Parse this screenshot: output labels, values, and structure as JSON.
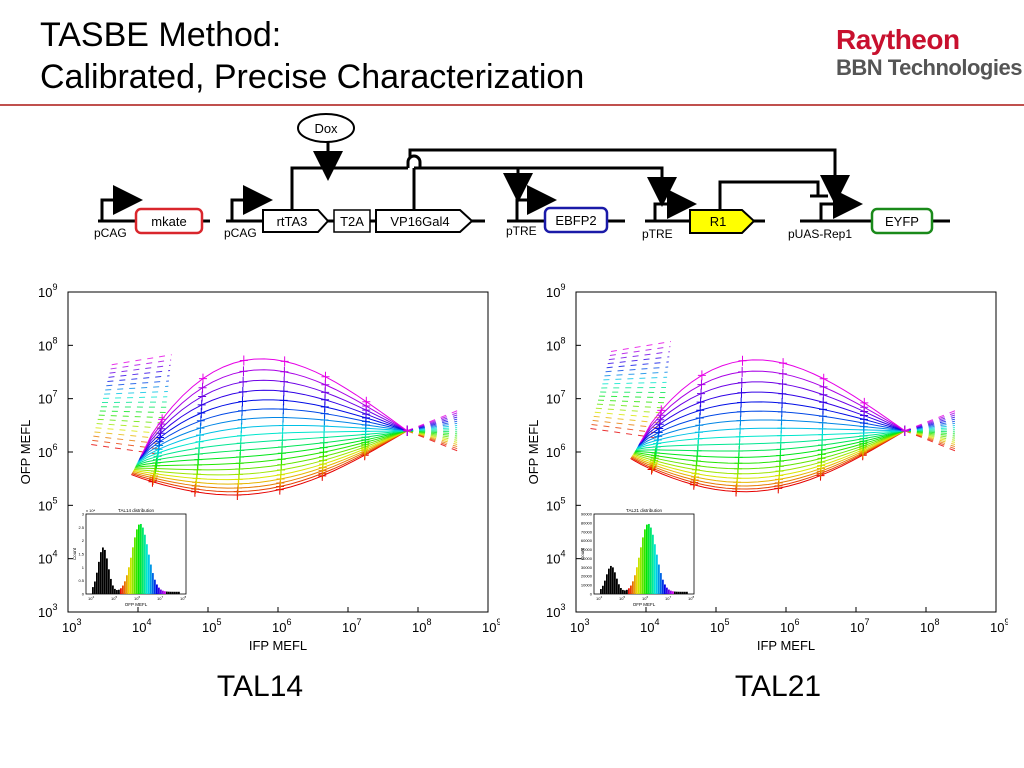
{
  "header": {
    "title_line1": "TASBE Method:",
    "title_line2": "Calibrated, Precise Characterization"
  },
  "logo": {
    "brand": "Raytheon",
    "sub": "BBN Technologies",
    "brand_color": "#c8102e"
  },
  "accent_rule_color": "#c0504d",
  "circuit": {
    "inducer": "Dox",
    "promoters": [
      "pCAG",
      "pCAG",
      "pTRE",
      "pTRE",
      "pUAS-Rep1"
    ],
    "genes": [
      {
        "label": "mkate",
        "border": "#d9262c",
        "fill": "#ffffff"
      },
      {
        "label": "rtTA3",
        "border": "#000000",
        "fill": "#ffffff"
      },
      {
        "label": "T2A",
        "border": "#000000",
        "fill": "#ffffff"
      },
      {
        "label": "VP16Gal4",
        "border": "#000000",
        "fill": "#ffffff"
      },
      {
        "label": "EBFP2",
        "border": "#1a1aa8",
        "fill": "#ffffff"
      },
      {
        "label": "R1",
        "border": "#000000",
        "fill": "#ffff00"
      },
      {
        "label": "EYFP",
        "border": "#1a8a1a",
        "fill": "#ffffff"
      }
    ]
  },
  "chart_data": [
    {
      "type": "line",
      "caption": "TAL14",
      "xlabel": "IFP MEFL",
      "ylabel": "OFP MEFL",
      "xscale": "log",
      "yscale": "log",
      "xlim": [
        1000,
        1000000000
      ],
      "ylim": [
        1000,
        1000000000
      ],
      "xticks": [
        "10",
        "10",
        "10",
        "10",
        "10",
        "10",
        "10"
      ],
      "xtick_exps": [
        "3",
        "4",
        "5",
        "6",
        "7",
        "8",
        "9"
      ],
      "ytick_exps": [
        "3",
        "4",
        "5",
        "6",
        "7",
        "8",
        "9"
      ],
      "grid": false,
      "series_count": 20,
      "series_shape": {
        "start_xy": [
          8000,
          300000
        ],
        "end_xy": [
          70000000,
          2500000
        ],
        "top_y": 90000000,
        "bottom_y": 300000
      },
      "inset": {
        "type": "bar",
        "title": "TAL14 distribution",
        "xlabel": "OFP MEFL",
        "ylabel": "Count",
        "yexp": "x 10⁴",
        "yticks": [
          "0",
          "0.5",
          "1",
          "1.5",
          "2",
          "2.5",
          "3"
        ],
        "xtick_exps": [
          "4",
          "5",
          "6",
          "7",
          "8"
        ]
      }
    },
    {
      "type": "line",
      "caption": "TAL21",
      "xlabel": "IFP MEFL",
      "ylabel": "OFP MEFL",
      "xscale": "log",
      "yscale": "log",
      "xlim": [
        1000,
        1000000000
      ],
      "ylim": [
        1000,
        1000000000
      ],
      "xtick_exps": [
        "3",
        "4",
        "5",
        "6",
        "7",
        "8",
        "9"
      ],
      "ytick_exps": [
        "3",
        "4",
        "5",
        "6",
        "7",
        "8",
        "9"
      ],
      "grid": false,
      "series_count": 20,
      "series_shape": {
        "start_xy": [
          6000,
          600000
        ],
        "end_xy": [
          50000000,
          2500000
        ],
        "top_y": 80000000,
        "bottom_y": 150000
      },
      "inset": {
        "type": "bar",
        "title": "TAL21 distribution",
        "xlabel": "OFP MEFL",
        "ylabel": "Count",
        "yticks": [
          "0",
          "10000",
          "20000",
          "30000",
          "40000",
          "50000",
          "60000",
          "70000",
          "80000",
          "90000"
        ],
        "xtick_exps": [
          "4",
          "5",
          "6",
          "7",
          "8"
        ]
      }
    }
  ]
}
